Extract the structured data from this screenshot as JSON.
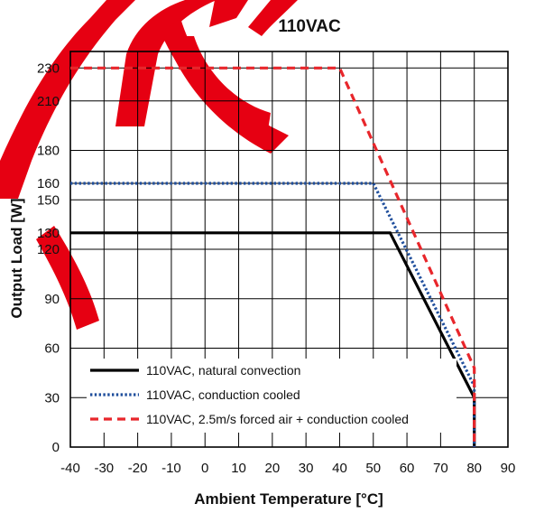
{
  "chart_data": {
    "type": "line",
    "title": "110VAC",
    "xlabel": "Ambient Temperature [°C]",
    "ylabel": "Output Load [W]",
    "xlim": [
      -40,
      90
    ],
    "ylim": [
      0,
      240
    ],
    "x_ticks": [
      -40,
      -30,
      -20,
      -10,
      0,
      10,
      20,
      30,
      40,
      50,
      60,
      70,
      80,
      90
    ],
    "x_tick_labels": [
      "-40",
      "-30",
      "-20",
      "-10",
      "0",
      "10",
      "20",
      "30",
      "40",
      "50",
      "60",
      "70",
      "80",
      "90"
    ],
    "y_ticks": [
      0,
      30,
      60,
      90,
      120,
      130,
      150,
      160,
      180,
      210,
      230
    ],
    "y_tick_labels": [
      "0",
      "30",
      "60",
      "90",
      "120",
      "130",
      "150",
      "160",
      "180",
      "210",
      "230"
    ],
    "grid": true,
    "legend_position": "bottom-left",
    "series": [
      {
        "name": "110VAC, natural convection",
        "color": "#000000",
        "style": "solid",
        "x": [
          -40,
          55,
          80,
          80
        ],
        "y": [
          130,
          130,
          30,
          0
        ]
      },
      {
        "name": "110VAC, conduction cooled",
        "color": "#1f4e9c",
        "style": "dotted",
        "x": [
          -40,
          50,
          80,
          80
        ],
        "y": [
          160,
          160,
          37,
          0
        ]
      },
      {
        "name": "110VAC, 2.5m/s forced air + conduction cooled",
        "color": "#e8262b",
        "style": "dashed",
        "x": [
          -40,
          40,
          80,
          80
        ],
        "y": [
          230,
          230,
          48,
          0
        ]
      }
    ]
  }
}
